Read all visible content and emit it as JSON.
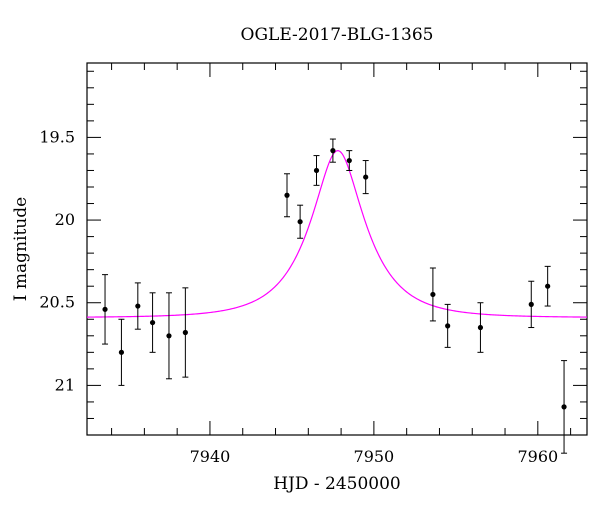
{
  "chart_data": {
    "type": "scatter",
    "title": "OGLE-2017-BLG-1365",
    "xlabel": "HJD - 2450000",
    "ylabel": "I magnitude",
    "xlim": [
      7932.5,
      7963.0
    ],
    "ylim": [
      21.3,
      19.05
    ],
    "y_inverted": true,
    "x_ticks": [
      7940,
      7950,
      7960
    ],
    "x_tick_labels": [
      "7940",
      "7950",
      "7960"
    ],
    "y_ticks": [
      19.5,
      20,
      20.5,
      21
    ],
    "y_tick_labels": [
      "19.5",
      "20",
      "20.5",
      "21"
    ],
    "grid": false,
    "legend": "none",
    "colors": {
      "points": "#000000",
      "model": "#ff00ff"
    },
    "series": [
      {
        "kind": "points_with_errors",
        "x": [
          7933.6,
          7934.6,
          7935.6,
          7936.5,
          7937.5,
          7938.5,
          7944.7,
          7945.5,
          7946.5,
          7947.5,
          7948.5,
          7949.5,
          7953.6,
          7954.5,
          7956.5,
          7959.6,
          7960.6,
          7961.6
        ],
        "y": [
          20.54,
          20.8,
          20.52,
          20.62,
          20.7,
          20.68,
          19.85,
          20.01,
          19.7,
          19.58,
          19.64,
          19.74,
          20.45,
          20.64,
          20.65,
          20.51,
          20.4,
          21.13
        ],
        "err": [
          0.21,
          0.2,
          0.14,
          0.18,
          0.26,
          0.27,
          0.13,
          0.1,
          0.09,
          0.07,
          0.06,
          0.1,
          0.16,
          0.13,
          0.15,
          0.14,
          0.12,
          0.28
        ]
      },
      {
        "kind": "model_curve",
        "baseline": 20.59,
        "peak_x": 7947.8,
        "peak_y": 19.58,
        "tE": 3.1
      }
    ]
  }
}
